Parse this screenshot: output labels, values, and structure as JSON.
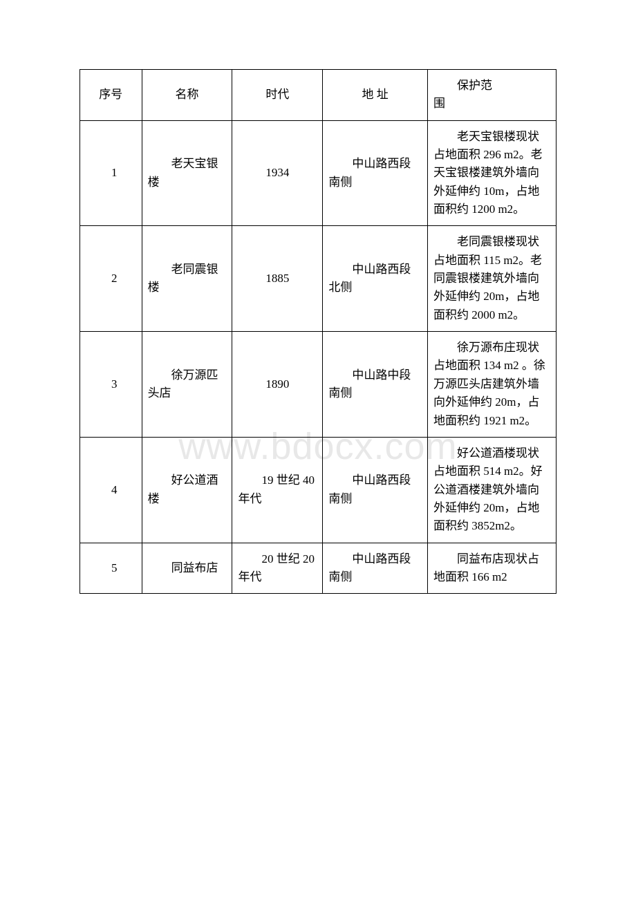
{
  "watermark": "www.bdocx.com",
  "table": {
    "border_color": "#000000",
    "font_color": "#000000",
    "watermark_color": "#e8e8e8",
    "background_color": "#ffffff",
    "font_size_pt": 12,
    "columns": [
      {
        "key": "seq",
        "label": "序号",
        "width_pct": 13,
        "align": "center"
      },
      {
        "key": "name",
        "label": "名称",
        "width_pct": 19,
        "align": "left"
      },
      {
        "key": "era",
        "label": "时代",
        "width_pct": 19,
        "align": "center"
      },
      {
        "key": "address",
        "label": "地 址",
        "width_pct": 22,
        "align": "left"
      },
      {
        "key": "scope",
        "label_line1": "保护范",
        "label_line2": "围",
        "width_pct": 27,
        "align": "left"
      }
    ],
    "rows": [
      {
        "seq": "1",
        "name": "老天宝银楼",
        "era": "1934",
        "address": "中山路西段南侧",
        "scope": "老天宝银楼现状占地面积 296 m2。老天宝银楼建筑外墙向外延伸约 10m，占地面积约 1200 m2。"
      },
      {
        "seq": "2",
        "name": "老同震银楼",
        "era": "1885",
        "address": "中山路西段北侧",
        "scope": "老同震银楼现状占地面积 115 m2。老同震银楼建筑外墙向外延伸约 20m，占地面积约 2000 m2。"
      },
      {
        "seq": "3",
        "name": "徐万源匹头店",
        "era": "1890",
        "address": "中山路中段南侧",
        "scope": "徐万源布庄现状占地面积 134 m2 。徐万源匹头店建筑外墙向外延伸约 20m，占地面积约 1921 m2。"
      },
      {
        "seq": "4",
        "name": "好公道酒楼",
        "era": "19 世纪 40 年代",
        "address": "中山路西段南侧",
        "scope": "好公道酒楼现状占地面积 514 m2。好公道酒楼建筑外墙向外延伸约 20m，占地面积约 3852m2。"
      },
      {
        "seq": "5",
        "name": "同益布店",
        "era": "20 世纪 20 年代",
        "address": "中山路西段南侧",
        "scope": "同益布店现状占地面积 166 m2"
      }
    ]
  }
}
